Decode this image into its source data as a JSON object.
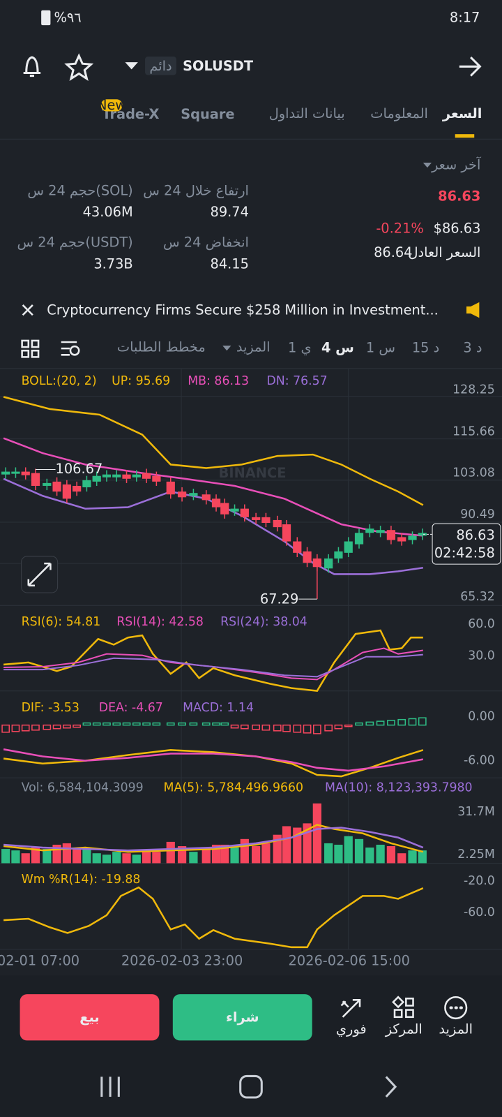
{
  "status": {
    "battery": "%٩٦",
    "time": "8:17"
  },
  "header": {
    "badge": "دائم",
    "symbol": "SOLUSDT"
  },
  "tabs": {
    "items": [
      "السعر",
      "المعلومات",
      "بيانات التداول",
      "Square",
      "Trade-X"
    ],
    "new_badge": "New"
  },
  "price": {
    "last_label": "آخر سعر",
    "last": "86.63",
    "change": "-0.21%",
    "usd": "$86.63",
    "fair_label": "السعر العادل",
    "fair": "86.64"
  },
  "stats": [
    {
      "label": "ارتفاع خلال 24 س",
      "value": "89.74"
    },
    {
      "label": "حجم 24 س(SOL)",
      "value": "43.06M"
    },
    {
      "label": "انخفاض 24 س",
      "value": "84.15"
    },
    {
      "label": "حجم 24 س(USDT)",
      "value": "3.73B"
    }
  ],
  "news": "Cryptocurrency Firms Secure $258 Million in Investment...",
  "intervals": [
    "3 د",
    "15 د",
    "1 س",
    "4 س",
    "1 ي",
    "المزيد",
    "مخطط الطلبات"
  ],
  "chart": {
    "watermark": "BINANCE",
    "boll": [
      "BOLL:(20, 2)",
      "UP: 95.69",
      "MB: 86.13",
      "DN: 76.57"
    ],
    "price_axis": [
      "128.25",
      "115.66",
      "103.08",
      "90.49",
      "65.32"
    ],
    "high": "106.67",
    "low": "67.29",
    "current": "86.63",
    "countdown": "02:42:58",
    "rsi": [
      "RSI(6): 54.81",
      "RSI(14): 42.58",
      "RSI(24): 38.04"
    ],
    "rsi_axis": [
      "60.0",
      "30.0"
    ],
    "macd": [
      "DIF: -3.53",
      "DEA: -4.67",
      "MACD: 1.14"
    ],
    "macd_axis": [
      "0.00",
      "-6.00"
    ],
    "vol": [
      "Vol: 6,584,104.3099",
      "MA(5): 5,784,496.9660",
      "MA(10): 8,123,393.7980"
    ],
    "vol_axis": [
      "31.7M",
      "2.25M"
    ],
    "wr": "Wm %R(14): -19.88",
    "wr_axis": [
      "-20.0",
      "-60.0"
    ],
    "dates": [
      "02-01 07:00",
      "2026-02-03 23:00",
      "2026-02-06 15:00"
    ]
  },
  "actions": {
    "sell": "بيع",
    "buy": "شراء"
  },
  "nav": [
    "فوري",
    "المركز",
    "المزيد"
  ]
}
